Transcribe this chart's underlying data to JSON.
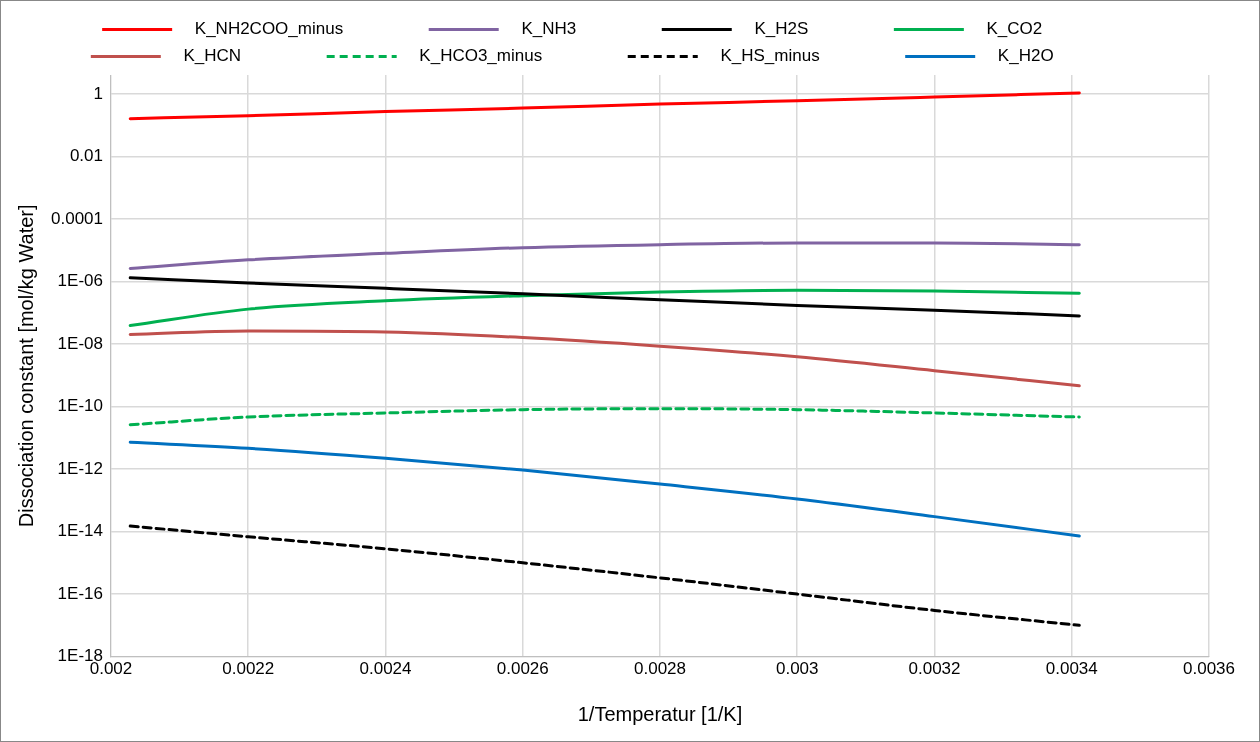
{
  "chart_data": {
    "type": "line",
    "xlabel": "1/Temperatur [1/K]",
    "ylabel": "Dissociation constant [mol/kg Water]",
    "x": [
      0.002028,
      0.0022,
      0.0024,
      0.0026,
      0.0028,
      0.003,
      0.0032,
      0.003411
    ],
    "series": [
      {
        "name": "K_NH2COO_minus",
        "color": "#ff0000",
        "values": [
          0.16,
          0.2,
          0.27,
          0.35,
          0.47,
          0.6,
          0.79,
          1.07
        ]
      },
      {
        "name": "K_NH3",
        "color": "#8064a2",
        "values": [
          2.6e-06,
          4.9e-06,
          7.9e-06,
          1.2e-05,
          1.5e-05,
          1.7e-05,
          1.7e-05,
          1.5e-05
        ]
      },
      {
        "name": "K_H2S",
        "color": "#000000",
        "values": [
          1.3e-06,
          8.9e-07,
          6e-07,
          4e-07,
          2.6e-07,
          1.7e-07,
          1.2e-07,
          7.9e-08
        ]
      },
      {
        "name": "K_CO2",
        "color": "#00b050",
        "values": [
          3.9e-08,
          1.3e-07,
          2.4e-07,
          3.5e-07,
          4.6e-07,
          5.2e-07,
          4.9e-07,
          4.2e-07
        ]
      },
      {
        "name": "K_HCN",
        "color": "#c0504d",
        "values": [
          2e-08,
          2.6e-08,
          2.4e-08,
          1.6e-08,
          8.5e-09,
          3.9e-09,
          1.4e-09,
          4.6e-10
        ]
      },
      {
        "name": "K_HCO3_minus",
        "color": "#00b050",
        "line_style": "dashed",
        "values": [
          2.6e-11,
          4.6e-11,
          6.2e-11,
          7.9e-11,
          8.5e-11,
          7.9e-11,
          6.2e-11,
          4.6e-11
        ]
      },
      {
        "name": "K_HS_minus",
        "color": "#000000",
        "line_style": "dashed",
        "values": [
          1.5e-14,
          6.8e-15,
          2.8e-15,
          1e-15,
          3.3e-16,
          1e-16,
          3e-17,
          1e-17
        ]
      },
      {
        "name": "K_H2O",
        "color": "#0070c0",
        "values": [
          7.2e-12,
          4.6e-12,
          2.2e-12,
          9.3e-13,
          3.3e-13,
          1.1e-13,
          3e-14,
          7.2e-15
        ]
      }
    ],
    "log": "y",
    "xlim": [
      0.002,
      0.0036
    ],
    "xticks": [
      0.002,
      0.0022,
      0.0024,
      0.0026,
      0.0028,
      0.003,
      0.0032,
      0.0034,
      0.0036
    ],
    "ylim": [
      1e-18,
      4
    ],
    "yticks": [
      {
        "value": 1e-18,
        "label": "1E-18"
      },
      {
        "value": 1e-16,
        "label": "1E-16"
      },
      {
        "value": 1e-14,
        "label": "1E-14"
      },
      {
        "value": 1e-12,
        "label": "1E-12"
      },
      {
        "value": 1e-10,
        "label": "1E-10"
      },
      {
        "value": 1e-08,
        "label": "1E-08"
      },
      {
        "value": 1e-06,
        "label": "1E-06"
      },
      {
        "value": 0.0001,
        "label": "0.0001"
      },
      {
        "value": 0.01,
        "label": "0.01"
      },
      {
        "value": 1,
        "label": "1"
      }
    ],
    "grid": true,
    "legend": "top",
    "marker": "none",
    "line_style": "solid"
  }
}
